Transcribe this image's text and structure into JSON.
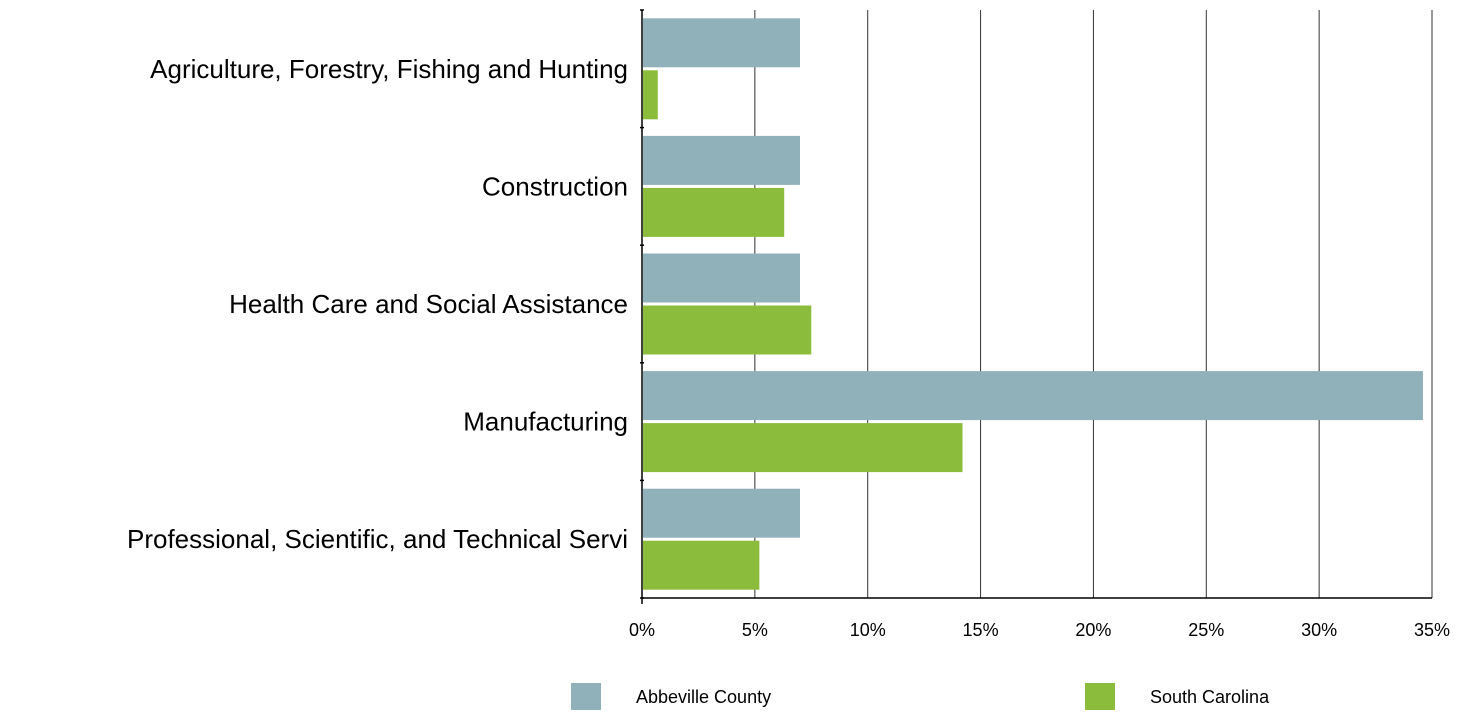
{
  "chart_data": {
    "type": "bar",
    "orientation": "horizontal",
    "categories": [
      "Agriculture, Forestry, Fishing and Hunting",
      "Construction",
      "Health Care and Social Assistance",
      "Manufacturing",
      "Professional, Scientific, and Technical Servi"
    ],
    "series": [
      {
        "name": "Abbeville County",
        "color": "#90b0ba",
        "values": [
          7.0,
          7.0,
          7.0,
          34.6,
          7.0
        ]
      },
      {
        "name": "South Carolina",
        "color": "#8cbc3c",
        "values": [
          0.7,
          6.3,
          7.5,
          14.2,
          5.2
        ]
      }
    ],
    "xlim": [
      0,
      35
    ],
    "x_ticks": [
      0,
      5,
      10,
      15,
      20,
      25,
      30,
      35
    ],
    "x_tick_labels": [
      "0%",
      "5%",
      "10%",
      "15%",
      "20%",
      "25%",
      "30%",
      "35%"
    ],
    "grid": "vertical",
    "legend_position": "bottom",
    "title": "",
    "xlabel": "",
    "ylabel": ""
  }
}
